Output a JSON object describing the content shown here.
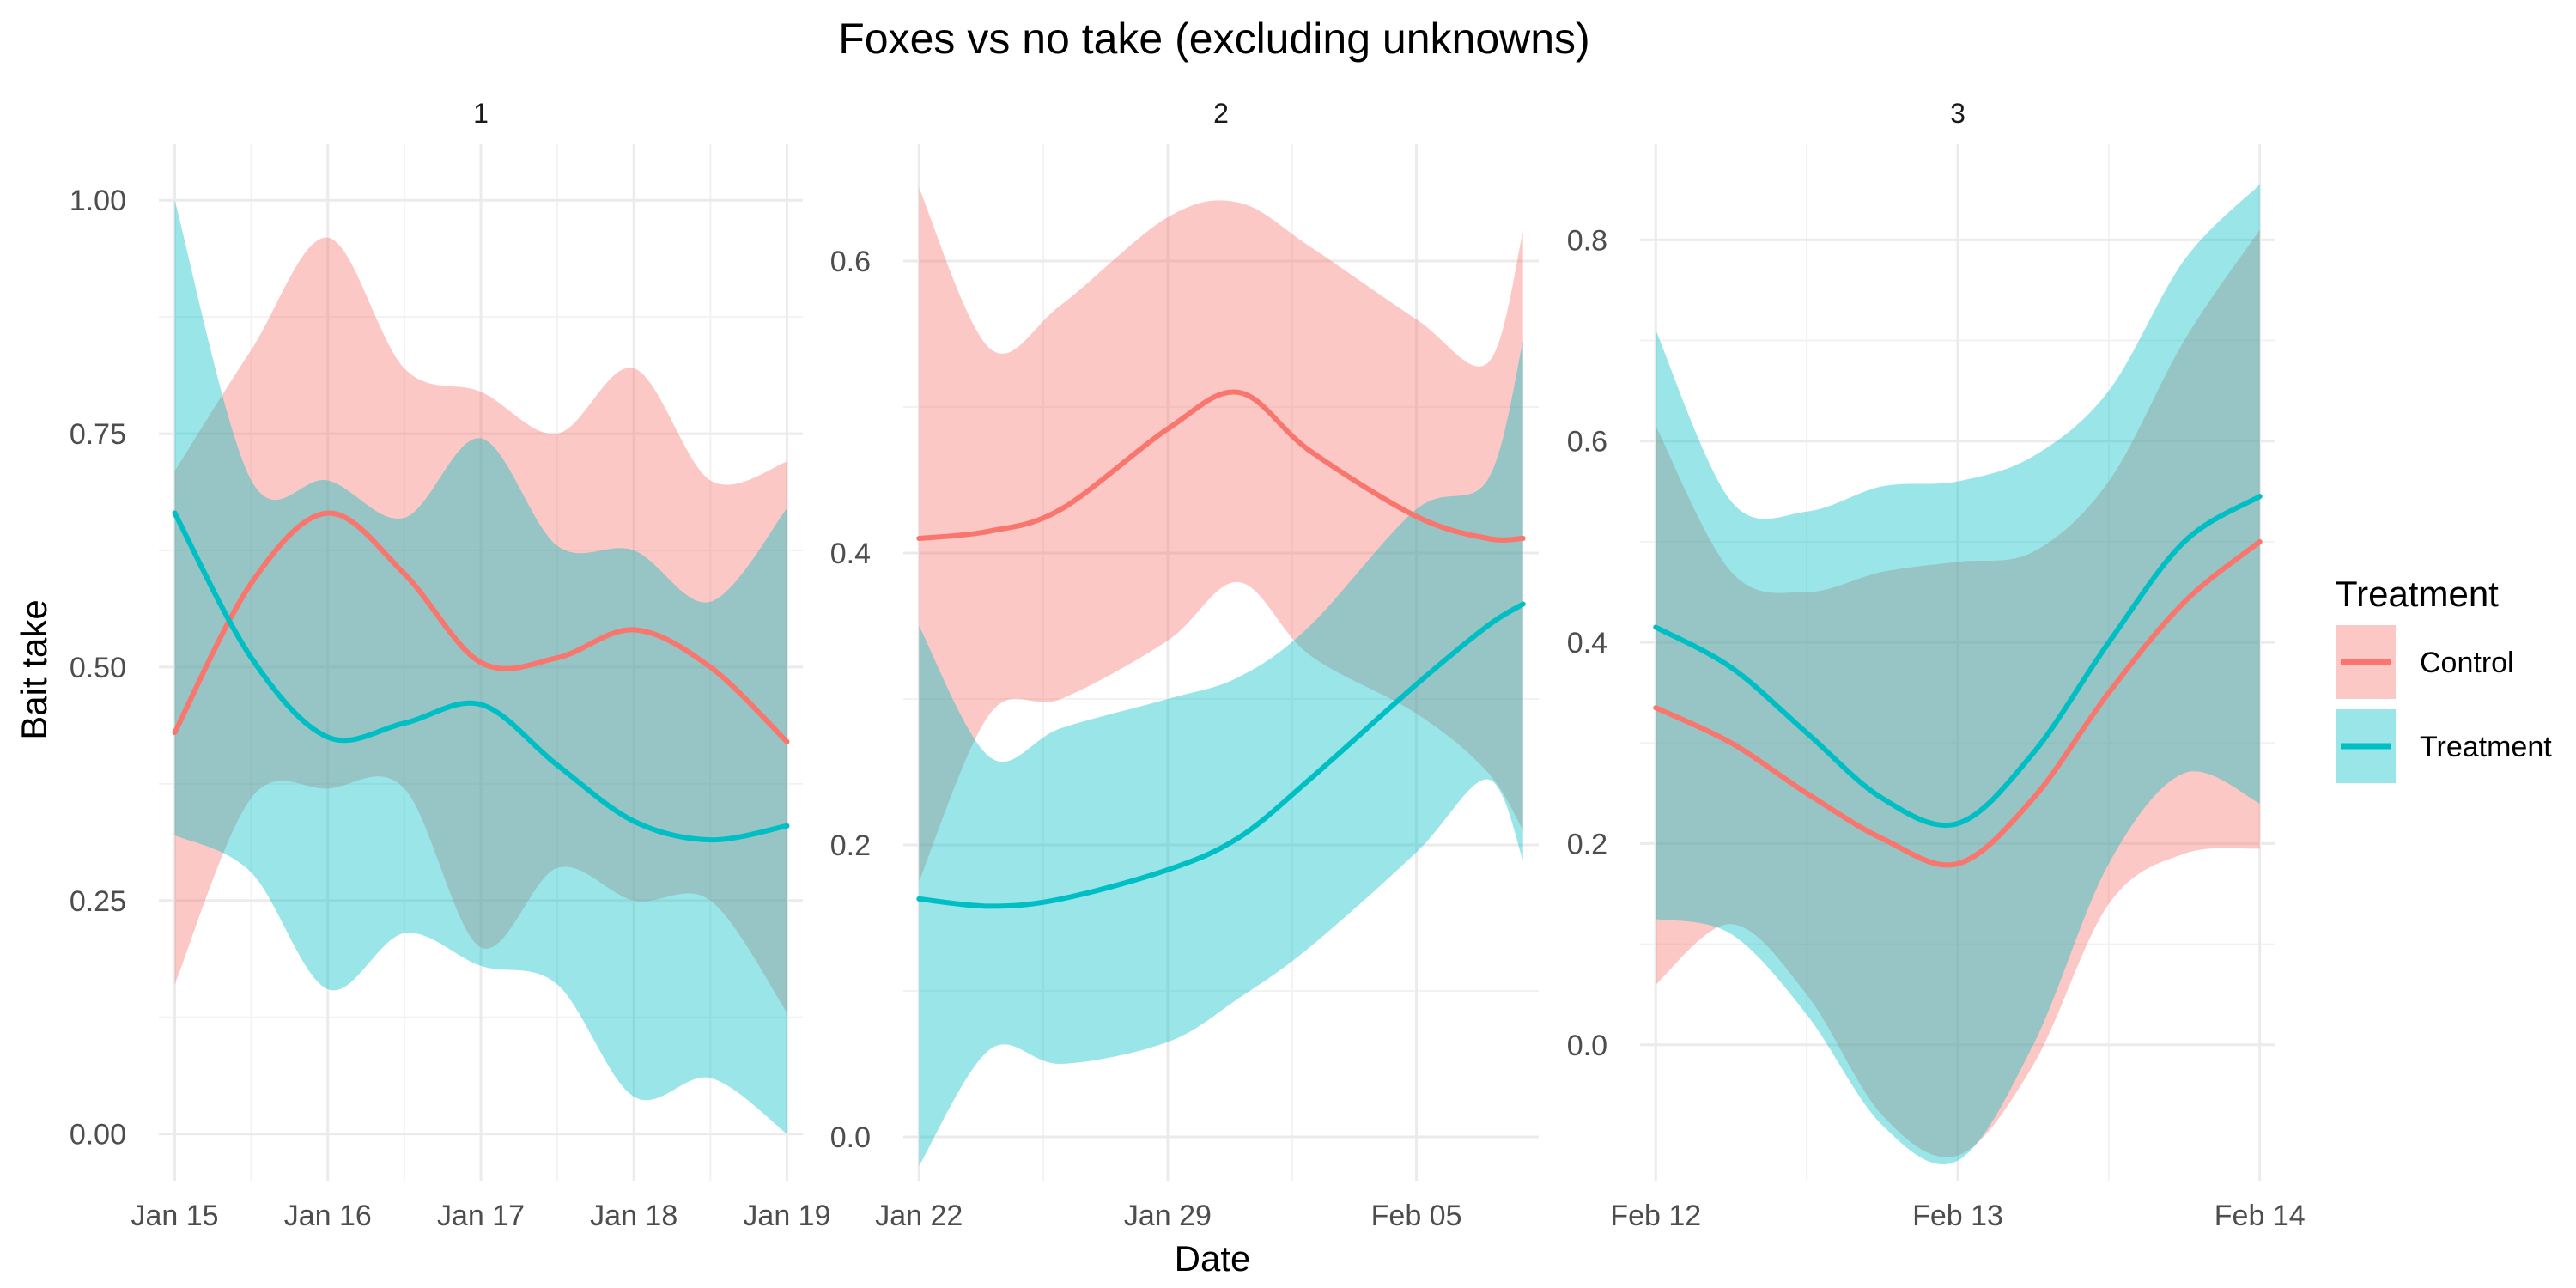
{
  "chart_data": {
    "type": "line",
    "title": "Foxes vs no take (excluding unknowns)",
    "xlabel": "Date",
    "ylabel": "Bait take",
    "legend": {
      "title": "Treatment",
      "position": "right",
      "entries": [
        {
          "name": "Control",
          "color": "#F8766D"
        },
        {
          "name": "Treatment",
          "color": "#00BFC4"
        }
      ]
    },
    "overlap_color": "#969696",
    "grid": true,
    "panels": [
      {
        "strip": "1",
        "xlim": [
          "2020-01-15",
          "2020-01-19"
        ],
        "ylim": [
          -0.05,
          1.06
        ],
        "xticks": [
          {
            "value": "2020-01-15",
            "label": "Jan 15"
          },
          {
            "value": "2020-01-16",
            "label": "Jan 16"
          },
          {
            "value": "2020-01-17",
            "label": "Jan 17"
          },
          {
            "value": "2020-01-18",
            "label": "Jan 18"
          },
          {
            "value": "2020-01-19",
            "label": "Jan 19"
          }
        ],
        "yticks": [
          {
            "value": 0,
            "label": "0.00"
          },
          {
            "value": 0.25,
            "label": "0.25"
          },
          {
            "value": 0.5,
            "label": "0.50"
          },
          {
            "value": 0.75,
            "label": "0.75"
          },
          {
            "value": 1.0,
            "label": "1.00"
          }
        ],
        "series": [
          {
            "name": "Control",
            "x": [
              "2020-01-15",
              "2020-01-15T12:00",
              "2020-01-16",
              "2020-01-16T12:00",
              "2020-01-17",
              "2020-01-17T12:00",
              "2020-01-18",
              "2020-01-18T12:00",
              "2020-01-19"
            ],
            "y": [
              0.43,
              0.59,
              0.665,
              0.6,
              0.505,
              0.51,
              0.54,
              0.5,
              0.42
            ],
            "lower": [
              0.16,
              0.36,
              0.37,
              0.37,
              0.2,
              0.285,
              0.25,
              0.25,
              0.13
            ],
            "upper": [
              0.71,
              0.84,
              0.96,
              0.82,
              0.795,
              0.75,
              0.82,
              0.7,
              0.72
            ]
          },
          {
            "name": "Treatment",
            "x": [
              "2020-01-15",
              "2020-01-15T12:00",
              "2020-01-16",
              "2020-01-16T12:00",
              "2020-01-17",
              "2020-01-17T12:00",
              "2020-01-18",
              "2020-01-18T12:00",
              "2020-01-19"
            ],
            "y": [
              0.665,
              0.51,
              0.425,
              0.44,
              0.46,
              0.395,
              0.335,
              0.315,
              0.33
            ],
            "lower": [
              0.32,
              0.28,
              0.155,
              0.215,
              0.18,
              0.16,
              0.04,
              0.06,
              0.0
            ],
            "upper": [
              1.0,
              0.7,
              0.7,
              0.66,
              0.745,
              0.63,
              0.625,
              0.57,
              0.67
            ]
          }
        ]
      },
      {
        "strip": "2",
        "xlim": [
          "2020-01-22",
          "2020-02-08"
        ],
        "ylim": [
          -0.03,
          0.68
        ],
        "xticks": [
          {
            "value": "2020-01-22",
            "label": "Jan 22"
          },
          {
            "value": "2020-01-29",
            "label": "Jan 29"
          },
          {
            "value": "2020-02-05",
            "label": "Feb 05"
          }
        ],
        "yticks": [
          {
            "value": 0.0,
            "label": "0.0"
          },
          {
            "value": 0.2,
            "label": "0.2"
          },
          {
            "value": 0.4,
            "label": "0.4"
          },
          {
            "value": 0.6,
            "label": "0.6"
          }
        ],
        "series": [
          {
            "name": "Control",
            "x": [
              "2020-01-22",
              "2020-01-24",
              "2020-01-26",
              "2020-01-29",
              "2020-01-31",
              "2020-02-02",
              "2020-02-05",
              "2020-02-07",
              "2020-02-08"
            ],
            "y": [
              0.41,
              0.415,
              0.43,
              0.485,
              0.51,
              0.47,
              0.425,
              0.41,
              0.41
            ],
            "lower": [
              0.175,
              0.29,
              0.3,
              0.34,
              0.38,
              0.33,
              0.29,
              0.25,
              0.21
            ],
            "upper": [
              0.65,
              0.54,
              0.57,
              0.63,
              0.64,
              0.61,
              0.56,
              0.53,
              0.62
            ]
          },
          {
            "name": "Treatment",
            "x": [
              "2020-01-22",
              "2020-01-24",
              "2020-01-26",
              "2020-01-29",
              "2020-01-31",
              "2020-02-02",
              "2020-02-05",
              "2020-02-07",
              "2020-02-08"
            ],
            "y": [
              0.163,
              0.158,
              0.163,
              0.183,
              0.205,
              0.245,
              0.31,
              0.35,
              0.365
            ],
            "lower": [
              -0.02,
              0.06,
              0.05,
              0.065,
              0.095,
              0.13,
              0.195,
              0.245,
              0.19
            ],
            "upper": [
              0.35,
              0.26,
              0.28,
              0.3,
              0.315,
              0.35,
              0.43,
              0.45,
              0.545
            ]
          }
        ]
      },
      {
        "strip": "3",
        "xlim": [
          "2020-02-12",
          "2020-02-14"
        ],
        "ylim": [
          -0.135,
          0.895
        ],
        "xticks": [
          {
            "value": "2020-02-12",
            "label": "Feb 12"
          },
          {
            "value": "2020-02-13",
            "label": "Feb 13"
          },
          {
            "value": "2020-02-14",
            "label": "Feb 14"
          }
        ],
        "yticks": [
          {
            "value": 0.0,
            "label": "0.0"
          },
          {
            "value": 0.2,
            "label": "0.2"
          },
          {
            "value": 0.4,
            "label": "0.4"
          },
          {
            "value": 0.6,
            "label": "0.6"
          },
          {
            "value": 0.8,
            "label": "0.8"
          }
        ],
        "series": [
          {
            "name": "Control",
            "x": [
              "2020-02-12",
              "2020-02-12T06:00",
              "2020-02-12T12:00",
              "2020-02-12T18:00",
              "2020-02-13",
              "2020-02-13T06:00",
              "2020-02-13T12:00",
              "2020-02-13T18:00",
              "2020-02-14"
            ],
            "y": [
              0.335,
              0.3,
              0.25,
              0.205,
              0.18,
              0.245,
              0.35,
              0.44,
              0.5
            ],
            "lower": [
              0.06,
              0.12,
              0.05,
              -0.07,
              -0.11,
              -0.02,
              0.14,
              0.19,
              0.195
            ],
            "upper": [
              0.615,
              0.47,
              0.45,
              0.47,
              0.48,
              0.49,
              0.56,
              0.7,
              0.81
            ]
          },
          {
            "name": "Treatment",
            "x": [
              "2020-02-12",
              "2020-02-12T06:00",
              "2020-02-12T12:00",
              "2020-02-12T18:00",
              "2020-02-13",
              "2020-02-13T06:00",
              "2020-02-13T12:00",
              "2020-02-13T18:00",
              "2020-02-14"
            ],
            "y": [
              0.415,
              0.375,
              0.31,
              0.245,
              0.22,
              0.29,
              0.4,
              0.5,
              0.545
            ],
            "lower": [
              0.125,
              0.11,
              0.03,
              -0.08,
              -0.115,
              0.0,
              0.18,
              0.27,
              0.24
            ],
            "upper": [
              0.71,
              0.54,
              0.53,
              0.555,
              0.56,
              0.585,
              0.65,
              0.78,
              0.855
            ]
          }
        ]
      }
    ]
  }
}
